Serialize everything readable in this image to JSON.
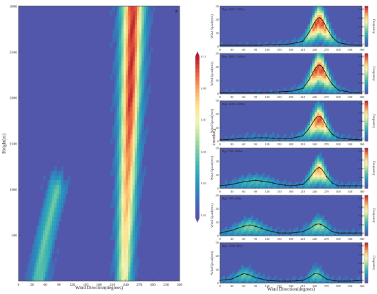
{
  "colormap": [
    "#5b4ea8",
    "#3f6cb3",
    "#2a8fc0",
    "#37b0b5",
    "#6dc9a3",
    "#b5e19b",
    "#f2f5b4",
    "#fde08b",
    "#f7a35c",
    "#e55b3e",
    "#b2172b"
  ],
  "main_panel": {
    "label": "a",
    "xlabel": "Wind Direction(degrees)",
    "ylabel": "Height(m)",
    "xticks": [
      "0",
      "30",
      "60",
      "90",
      "120",
      "150",
      "180",
      "210",
      "240",
      "270",
      "300",
      "330",
      "360"
    ],
    "yticks": [
      "500",
      "1000",
      "1500",
      "2000",
      "2500",
      "3000"
    ],
    "colorbar_label": "Frequency",
    "colorbar_ticks": [
      "0.01",
      "0.03",
      "0.05",
      "0.07",
      "0.09",
      "0.11"
    ]
  },
  "sub_panels": {
    "xlabel": "Wind Direction(degrees)",
    "ylabel": "Wind Speed(m/s)",
    "xticks": [
      "0",
      "30",
      "60",
      "90",
      "120",
      "150",
      "180",
      "210",
      "240",
      "270",
      "300",
      "330",
      "360"
    ],
    "yticks": [
      "0",
      "10",
      "20",
      "30"
    ],
    "colorbar_label": "Frequency",
    "left_ticks": [
      "0.2",
      "0.15",
      "0.1",
      "0.05",
      "0"
    ],
    "right_ticks": [
      "0.008",
      "0.006",
      "0.004",
      "0.002",
      "0"
    ],
    "titles": [
      "Hgt: 2400–2700m",
      "Hgt: 1800–2100m",
      "Hgt: 1200–1500m",
      "Hgt: 700–1000m",
      "Hgt: 300–600m",
      "Hgt: 150m down"
    ]
  },
  "chart_data": [
    {
      "type": "heatmap",
      "title": "",
      "xlabel": "Wind Direction(degrees)",
      "ylabel": "Height(m)",
      "xlim": [
        0,
        360
      ],
      "ylim": [
        0,
        3000
      ],
      "zlim": [
        0.01,
        0.12
      ],
      "colorbar_label": "Frequency",
      "features": [
        {
          "name": "westerly band",
          "center_x": [
            {
              "height": 0,
              "x": 236
            },
            {
              "height": 1000,
              "x": 243
            },
            {
              "height": 2000,
              "x": 250
            },
            {
              "height": 3000,
              "x": 256
            }
          ],
          "peak_frequency": 0.1
        },
        {
          "name": "low-level easterly band",
          "center_x": [
            {
              "height": 0,
              "x": 45
            },
            {
              "height": 500,
              "x": 62
            },
            {
              "height": 1000,
              "x": 85
            }
          ],
          "peak_frequency": 0.05
        }
      ]
    },
    {
      "type": "heatmap",
      "title": "Hgt: 2400–2700m",
      "xlabel": "Wind Direction(degrees)",
      "ylabel": "Wind Speed(m/s)",
      "xlim": [
        0,
        360
      ],
      "ylim": [
        0,
        30
      ],
      "line": {
        "x": [
          0,
          30,
          60,
          90,
          120,
          150,
          180,
          210,
          225,
          240,
          250,
          260,
          270,
          285,
          300,
          330,
          360
        ],
        "y": [
          1,
          1,
          1,
          1,
          1.2,
          1.5,
          2,
          4,
          10,
          18,
          22,
          20,
          14,
          7,
          3,
          1.2,
          1
        ]
      }
    },
    {
      "type": "heatmap",
      "title": "Hgt: 1800–2100m",
      "xlabel": "Wind Direction(degrees)",
      "ylabel": "Wind Speed(m/s)",
      "xlim": [
        0,
        360
      ],
      "ylim": [
        0,
        30
      ],
      "line": {
        "x": [
          0,
          30,
          60,
          90,
          120,
          150,
          180,
          210,
          225,
          240,
          250,
          260,
          270,
          285,
          300,
          330,
          360
        ],
        "y": [
          1,
          1,
          1,
          1,
          1.2,
          1.5,
          2,
          4,
          10,
          18,
          22,
          20,
          14,
          7,
          3,
          1.2,
          1
        ]
      }
    },
    {
      "type": "heatmap",
      "title": "Hgt: 1200–1500m",
      "xlabel": "Wind Direction(degrees)",
      "ylabel": "Wind Speed(m/s)",
      "xlim": [
        0,
        360
      ],
      "ylim": [
        0,
        30
      ],
      "line": {
        "x": [
          0,
          30,
          60,
          90,
          120,
          150,
          180,
          210,
          225,
          240,
          250,
          260,
          270,
          285,
          300,
          330,
          360
        ],
        "y": [
          1,
          1.5,
          2,
          2.5,
          2.5,
          2,
          2,
          4,
          9,
          16,
          19,
          17,
          11,
          5,
          2.5,
          1.5,
          1
        ]
      }
    },
    {
      "type": "heatmap",
      "title": "Hgt: 700–1000m",
      "xlabel": "Wind Direction(degrees)",
      "ylabel": "Wind Speed(m/s)",
      "xlim": [
        0,
        360
      ],
      "ylim": [
        0,
        30
      ],
      "line": {
        "x": [
          0,
          30,
          60,
          90,
          120,
          150,
          180,
          210,
          225,
          240,
          250,
          260,
          270,
          285,
          300,
          330,
          360
        ],
        "y": [
          2,
          3,
          5,
          6,
          5,
          3,
          2,
          3,
          7,
          13,
          16,
          14,
          9,
          4,
          2,
          2,
          2
        ]
      }
    },
    {
      "type": "heatmap",
      "title": "Hgt: 300–600m",
      "xlabel": "Wind Direction(degrees)",
      "ylabel": "Wind Speed(m/s)",
      "xlim": [
        0,
        360
      ],
      "ylim": [
        0,
        30
      ],
      "line": {
        "x": [
          0,
          30,
          60,
          75,
          90,
          120,
          150,
          180,
          210,
          225,
          240,
          250,
          260,
          270,
          285,
          300,
          330,
          360
        ],
        "y": [
          2,
          4,
          7,
          8,
          7,
          4,
          2,
          2,
          3,
          5,
          8,
          9,
          8,
          6,
          3,
          2,
          2,
          2
        ]
      }
    },
    {
      "type": "heatmap",
      "title": "Hgt: 150m down",
      "xlabel": "Wind Direction(degrees)",
      "ylabel": "Wind Speed(m/s)",
      "xlim": [
        0,
        360
      ],
      "ylim": [
        0,
        30
      ],
      "line": {
        "x": [
          0,
          30,
          45,
          60,
          75,
          90,
          120,
          150,
          180,
          210,
          225,
          240,
          250,
          260,
          270,
          285,
          300,
          330,
          360
        ],
        "y": [
          2,
          3,
          5,
          7,
          6,
          4,
          2,
          1.5,
          1.5,
          2,
          4,
          7,
          7,
          5,
          3,
          2,
          1.5,
          1.5,
          2
        ]
      }
    }
  ]
}
